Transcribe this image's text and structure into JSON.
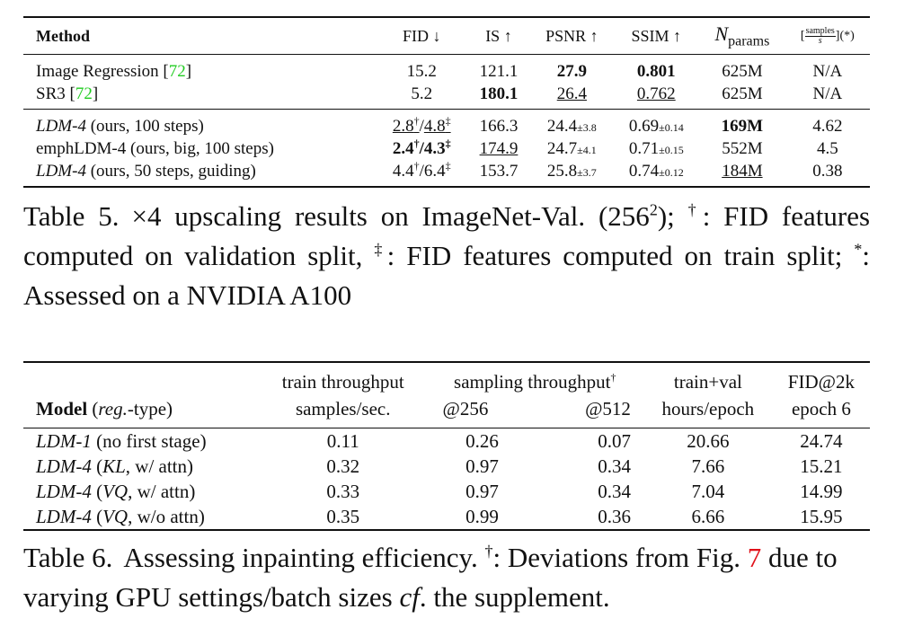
{
  "table5": {
    "headers": {
      "method": "Method",
      "fid": "FID ↓",
      "is": "IS ↑",
      "psnr": "PSNR ↑",
      "ssim": "SSIM ↑",
      "nparams_n": "N",
      "nparams_sub": "params",
      "speed_open": "[",
      "speed_num": "samples",
      "speed_den": "s",
      "speed_close": "](*)"
    },
    "rows": [
      {
        "method": "Image Regression [",
        "cite": "72",
        "method_end": "]",
        "fid": "15.2",
        "is": "121.1",
        "psnr": "27.9",
        "ssim": "0.801",
        "params": "625M",
        "speed": "N/A"
      },
      {
        "method": "SR3 [",
        "cite": "72",
        "method_end": "]",
        "fid": "5.2",
        "is": "180.1",
        "psnr": "26.4",
        "ssim": "0.762",
        "params": "625M",
        "speed": "N/A"
      },
      {
        "method_it": "LDM-4",
        "method": " (ours, 100 steps)",
        "fid_a": "2.8",
        "fid_a_sup": "†",
        "fid_sep": "/",
        "fid_b": "4.8",
        "fid_b_sup": "‡",
        "is": "166.3",
        "psnr": "24.4",
        "psnr_pm": "±3.8",
        "ssim": "0.69",
        "ssim_pm": "±0.14",
        "params": "169M",
        "speed": "4.62"
      },
      {
        "method": "emphLDM-4 (ours, big, 100 steps)",
        "fid_a": "2.4",
        "fid_a_sup": "†",
        "fid_sep": "/",
        "fid_b": "4.3",
        "fid_b_sup": "‡",
        "is": "174.9",
        "psnr": "24.7",
        "psnr_pm": "±4.1",
        "ssim": "0.71",
        "ssim_pm": "±0.15",
        "params": "552M",
        "speed": "4.5"
      },
      {
        "method_it": "LDM-4",
        "method": " (ours, 50 steps, guiding)",
        "fid_a": "4.4",
        "fid_a_sup": "†",
        "fid_sep": "/",
        "fid_b": "6.4",
        "fid_b_sup": "‡",
        "is": "153.7",
        "psnr": "25.8",
        "psnr_pm": "±3.7",
        "ssim": "0.74",
        "ssim_pm": "±0.12",
        "params": "184M",
        "speed": "0.38"
      }
    ],
    "caption": {
      "label": "Table 5.",
      "p1": "×4 upscaling results on ImageNet-Val. (256",
      "sq": "2",
      "p2": "); ",
      "dag": "†",
      "p3": ": FID features computed on validation split, ",
      "ddag": "‡",
      "p4": ": FID features computed on train split; ",
      "star": "*",
      "p5": ": Assessed on a NVIDIA A100"
    }
  },
  "table6": {
    "header1": {
      "train": "train throughput",
      "sampling": "sampling throughput",
      "sampling_sup": "†",
      "trainval": "train+val",
      "fid": "FID@2k"
    },
    "header2": {
      "model": "Model",
      "model_paren_open": " (",
      "model_reg": "reg.",
      "model_type": "-type)",
      "train": "samples/sec.",
      "s256": "@256",
      "s512": "@512",
      "trainval": "hours/epoch",
      "fid": "epoch 6"
    },
    "rows": [
      {
        "name": "LDM-1",
        "rest_open": " (no first stage)",
        "rest_it": "",
        "rest_close": "",
        "train": "0.11",
        "s256": "0.26",
        "s512": "0.07",
        "trainval": "20.66",
        "fid": "24.74"
      },
      {
        "name": "LDM-4",
        "rest_open": " (",
        "rest_it": "KL",
        "rest_close": ", w/ attn)",
        "train": "0.32",
        "s256": "0.97",
        "s512": "0.34",
        "trainval": "7.66",
        "fid": "15.21"
      },
      {
        "name": "LDM-4",
        "rest_open": " (",
        "rest_it": "VQ",
        "rest_close": ", w/ attn)",
        "train": "0.33",
        "s256": "0.97",
        "s512": "0.34",
        "trainval": "7.04",
        "fid": "14.99"
      },
      {
        "name": "LDM-4",
        "rest_open": " (",
        "rest_it": "VQ",
        "rest_close": ", w/o attn)",
        "train": "0.35",
        "s256": "0.99",
        "s512": "0.36",
        "trainval": "6.66",
        "fid": "15.95"
      }
    ],
    "caption": {
      "label": "Table 6.",
      "p1": "Assessing inpainting efficiency. ",
      "dag": "†",
      "p2": ": Deviations from Fig. ",
      "fig": "7",
      "p3": " due to varying GPU settings/batch sizes ",
      "cf": "cf",
      "p4": ". the supplement."
    }
  }
}
